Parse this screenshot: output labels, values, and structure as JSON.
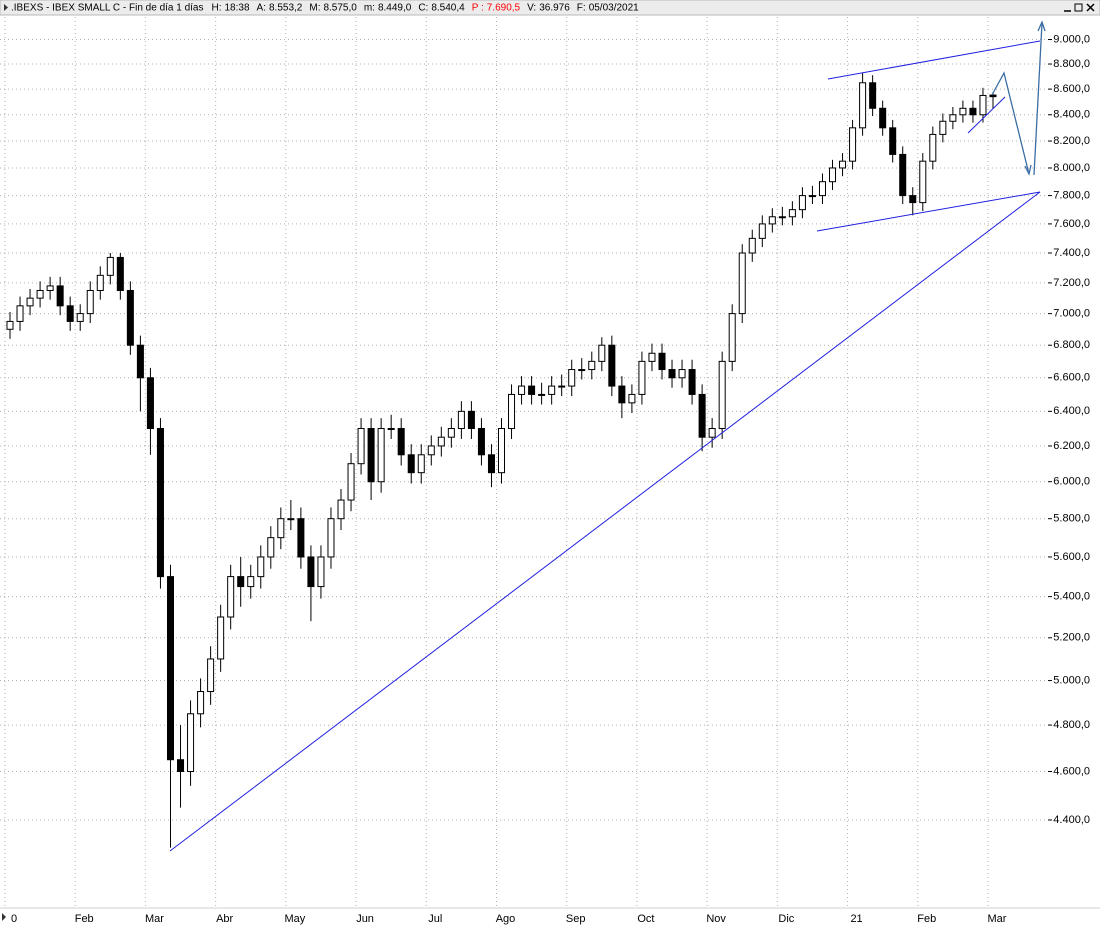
{
  "header": {
    "title": ".IBEXS - IBEX SMALL C - Fin de día 1 días",
    "fields": [
      {
        "label": "H:",
        "value": "18:38"
      },
      {
        "label": "A:",
        "value": "8.553,2"
      },
      {
        "label": "M:",
        "value": "8.575,0"
      },
      {
        "label": "m:",
        "value": "8.449,0"
      },
      {
        "label": "C:",
        "value": "8.540,4"
      },
      {
        "label": "P :",
        "value": "7.690,5",
        "color": "#ff0000"
      },
      {
        "label": "V:",
        "value": "36.976"
      },
      {
        "label": "F:",
        "value": "05/03/2021"
      }
    ]
  },
  "chart_data": {
    "type": "candlestick",
    "log": true,
    "grid": true,
    "up_color": "#ffffff",
    "down_color": "#000000",
    "outline_color": "#000000",
    "categories": [
      "0",
      null,
      null,
      null,
      null,
      null,
      null,
      "Feb",
      null,
      null,
      null,
      null,
      null,
      null,
      "Mar",
      null,
      null,
      null,
      null,
      null,
      null,
      "Abr",
      null,
      null,
      null,
      null,
      null,
      null,
      "May",
      null,
      null,
      null,
      null,
      null,
      null,
      "Jun",
      null,
      null,
      null,
      null,
      null,
      null,
      "Jul",
      null,
      null,
      null,
      null,
      null,
      null,
      "Ago",
      null,
      null,
      null,
      null,
      null,
      null,
      "Sep",
      null,
      null,
      null,
      null,
      null,
      null,
      "Oct",
      null,
      null,
      null,
      null,
      null,
      null,
      "Nov",
      null,
      null,
      null,
      null,
      null,
      null,
      "Dic",
      null,
      null,
      null,
      null,
      null,
      null,
      "21",
      null,
      null,
      null,
      null,
      null,
      null,
      "Feb",
      null,
      null,
      null,
      null,
      null,
      null,
      "Mar"
    ],
    "open": [
      6900,
      6950,
      7050,
      7100,
      7150,
      7180,
      7050,
      6950,
      7000,
      7150,
      7250,
      7370,
      7150,
      6800,
      6600,
      6300,
      5500,
      4650,
      4600,
      4850,
      4950,
      5100,
      5300,
      5500,
      5450,
      5500,
      5600,
      5700,
      5800,
      5800,
      5600,
      5450,
      5600,
      5800,
      5900,
      6100,
      6300,
      6000,
      6300,
      6300,
      6150,
      6050,
      6150,
      6200,
      6250,
      6300,
      6400,
      6300,
      6150,
      6050,
      6300,
      6500,
      6550,
      6500,
      6500,
      6550,
      6550,
      6650,
      6650,
      6700,
      6800,
      6550,
      6450,
      6500,
      6700,
      6750,
      6650,
      6600,
      6650,
      6500,
      6250,
      6300,
      6700,
      7000,
      7400,
      7500,
      7600,
      7650,
      7650,
      7700,
      7800,
      7800,
      7900,
      8000,
      8050,
      8300,
      8650,
      8450,
      8300,
      8100,
      7800,
      7750,
      8050,
      8250,
      8350,
      8400,
      8450,
      8400,
      8553.2
    ],
    "high": [
      7010,
      7110,
      7160,
      7210,
      7240,
      7240,
      7110,
      7060,
      7210,
      7310,
      7400,
      7400,
      7210,
      6860,
      6660,
      6360,
      5560,
      4800,
      4910,
      5010,
      5160,
      5360,
      5560,
      5600,
      5560,
      5660,
      5760,
      5860,
      5900,
      5860,
      5660,
      5660,
      5860,
      5960,
      6160,
      6360,
      6360,
      6360,
      6380,
      6360,
      6210,
      6210,
      6260,
      6310,
      6360,
      6460,
      6460,
      6360,
      6210,
      6360,
      6560,
      6610,
      6610,
      6570,
      6610,
      6620,
      6710,
      6720,
      6760,
      6850,
      6860,
      6610,
      6560,
      6760,
      6810,
      6810,
      6710,
      6710,
      6710,
      6560,
      6360,
      6760,
      7060,
      7460,
      7560,
      7660,
      7710,
      7720,
      7760,
      7860,
      7870,
      7960,
      8060,
      8110,
      8360,
      8730,
      8710,
      8510,
      8360,
      8160,
      7860,
      8110,
      8310,
      8410,
      8460,
      8510,
      8510,
      8610,
      8575
    ],
    "low": [
      6840,
      6890,
      6990,
      7040,
      7090,
      6990,
      6890,
      6890,
      6940,
      7090,
      7190,
      7090,
      6740,
      6400,
      6150,
      5440,
      4290,
      4450,
      4540,
      4790,
      4890,
      5040,
      5240,
      5350,
      5390,
      5440,
      5540,
      5640,
      5740,
      5540,
      5280,
      5390,
      5540,
      5740,
      5840,
      6040,
      5900,
      5940,
      6240,
      6090,
      5990,
      5990,
      6090,
      6140,
      6190,
      6240,
      6240,
      6090,
      5970,
      5990,
      6240,
      6440,
      6440,
      6440,
      6440,
      6490,
      6490,
      6590,
      6590,
      6640,
      6490,
      6360,
      6390,
      6440,
      6640,
      6590,
      6540,
      6540,
      6440,
      6170,
      6190,
      6240,
      6640,
      6940,
      7340,
      7440,
      7540,
      7590,
      7590,
      7640,
      7740,
      7740,
      7840,
      7940,
      7990,
      8240,
      8390,
      8240,
      8040,
      7740,
      7660,
      7690,
      7990,
      8190,
      8290,
      8340,
      8340,
      8340,
      8449
    ],
    "close": [
      6950,
      7050,
      7100,
      7150,
      7180,
      7050,
      6950,
      7000,
      7150,
      7250,
      7370,
      7150,
      6800,
      6600,
      6300,
      5500,
      4650,
      4600,
      4850,
      4950,
      5100,
      5300,
      5500,
      5450,
      5500,
      5600,
      5700,
      5800,
      5800,
      5600,
      5450,
      5600,
      5800,
      5900,
      6100,
      6300,
      6000,
      6300,
      6300,
      6150,
      6050,
      6150,
      6200,
      6250,
      6300,
      6400,
      6300,
      6150,
      6050,
      6300,
      6500,
      6550,
      6500,
      6500,
      6550,
      6550,
      6650,
      6650,
      6700,
      6800,
      6550,
      6450,
      6500,
      6700,
      6750,
      6650,
      6600,
      6650,
      6500,
      6250,
      6300,
      6700,
      7000,
      7400,
      7500,
      7600,
      7650,
      7650,
      7700,
      7800,
      7800,
      7900,
      8000,
      8050,
      8300,
      8650,
      8450,
      8300,
      8100,
      7800,
      7750,
      8050,
      8250,
      8350,
      8400,
      8450,
      8400,
      8550,
      8540.4
    ],
    "ylim": [
      4070,
      9230
    ],
    "yticks": [
      {
        "value": 4400,
        "label": "4.400,0"
      },
      {
        "value": 4600,
        "label": "4.600,0"
      },
      {
        "value": 4800,
        "label": "4.800,0"
      },
      {
        "value": 5000,
        "label": "5.000,0"
      },
      {
        "value": 5200,
        "label": "5.200,0"
      },
      {
        "value": 5400,
        "label": "5.400,0"
      },
      {
        "value": 5600,
        "label": "5.600,0"
      },
      {
        "value": 5800,
        "label": "5.800,0"
      },
      {
        "value": 6000,
        "label": "6.000,0"
      },
      {
        "value": 6200,
        "label": "6.200,0"
      },
      {
        "value": 6400,
        "label": "6.400,0"
      },
      {
        "value": 6600,
        "label": "6.600,0"
      },
      {
        "value": 6800,
        "label": "6.800,0"
      },
      {
        "value": 7000,
        "label": "7.000,0"
      },
      {
        "value": 7200,
        "label": "7.200,0"
      },
      {
        "value": 7400,
        "label": "7.400,0"
      },
      {
        "value": 7600,
        "label": "7.600,0"
      },
      {
        "value": 7800,
        "label": "7.800,0"
      },
      {
        "value": 8000,
        "label": "8.000,0"
      },
      {
        "value": 8200,
        "label": "8.200,0"
      },
      {
        "value": 8400,
        "label": "8.400,0"
      },
      {
        "value": 8600,
        "label": "8.600,0"
      },
      {
        "value": 8800,
        "label": "8.800,0"
      },
      {
        "value": 9000,
        "label": "9.000,0"
      }
    ]
  }
}
